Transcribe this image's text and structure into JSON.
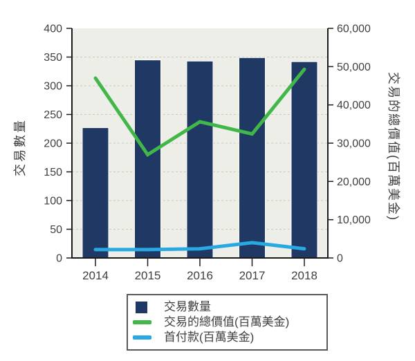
{
  "chart_data": {
    "type": "bar+line (dual axis combo)",
    "x": [
      "2014",
      "2015",
      "2016",
      "2017",
      "2018"
    ],
    "series": [
      {
        "name": "交易數量",
        "type": "bar",
        "axis": "left",
        "color": "#1F3864",
        "values": [
          227,
          345,
          343,
          349,
          342
        ]
      },
      {
        "name": "交易的總價值(百萬美金)",
        "type": "line",
        "axis": "right",
        "color": "#41B649",
        "values": [
          47000,
          27000,
          35600,
          32400,
          49300
        ]
      },
      {
        "name": "首付款(百萬美金)",
        "type": "line",
        "axis": "right",
        "color": "#29A9E1",
        "values": [
          2200,
          2200,
          2400,
          4000,
          2400
        ]
      }
    ],
    "left_axis": {
      "label": "交易數量",
      "min": 0,
      "max": 400,
      "step": 50,
      "ticks": [
        0,
        50,
        100,
        150,
        200,
        250,
        300,
        350,
        400
      ]
    },
    "right_axis": {
      "label": "交易的總價值(百萬美金)",
      "min": 0,
      "max": 60000,
      "step": 10000,
      "ticks": [
        0,
        10000,
        20000,
        30000,
        40000,
        50000,
        60000
      ],
      "tick_format": "thousands-comma"
    },
    "grid": {
      "horizontal": "dashed",
      "vertical": "none"
    },
    "legend_position": "bottom"
  },
  "legend": {
    "items": [
      {
        "swatch": "square",
        "color": "#1F3864",
        "label": "交易數量"
      },
      {
        "swatch": "line",
        "color": "#41B649",
        "label": "交易的總價值(百萬美金)"
      },
      {
        "swatch": "line",
        "color": "#29A9E1",
        "label": "首付款(百萬美金)"
      }
    ]
  },
  "colors": {
    "bar_navy": "#1F3864",
    "line_green": "#41B649",
    "line_blue": "#29A9E1",
    "plot_background": "#EDEEE8",
    "grid_line": "#CCC9BE",
    "axis_line": "#1A1A1A",
    "text": "#3F3F3F",
    "legend_border": "#58595B"
  }
}
